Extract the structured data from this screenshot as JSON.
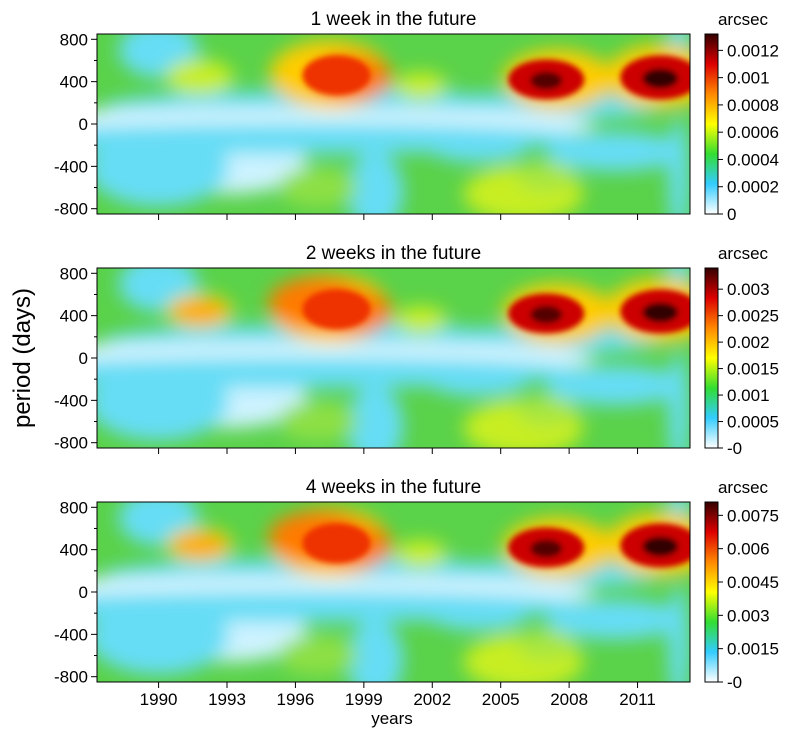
{
  "figure": {
    "ylabel": "period (days)",
    "xlabel": "years"
  },
  "colors": {
    "colormap": [
      "#ffffff",
      "#33ccff",
      "#33dd33",
      "#ffff00",
      "#ff8800",
      "#dd0000",
      "#330000"
    ],
    "background_field": "#5ad24a"
  },
  "chart_data": [
    {
      "type": "heatmap",
      "title": "1 week in the future",
      "colorbar_label": "arcsec",
      "colorbar_ticks": [
        "0",
        "0.0002",
        "0.0004",
        "0.0006",
        "0.0008",
        "0.001",
        "0.0012"
      ],
      "colorbar_values": [
        0,
        0.0002,
        0.0004,
        0.0006,
        0.0008,
        0.001,
        0.0012
      ],
      "colorbar_range": [
        0,
        0.00132
      ],
      "ylim": [
        -850,
        850
      ],
      "yticks": [
        "-800",
        "-400",
        "0",
        "400",
        "800"
      ],
      "yticks_values": [
        -800,
        -400,
        0,
        400,
        800
      ],
      "xlim": [
        1987.3,
        2013.3
      ],
      "show_xticklabels": false
    },
    {
      "type": "heatmap",
      "title": "2 weeks in the future",
      "colorbar_label": "arcsec",
      "colorbar_ticks": [
        "-0",
        "0.0005",
        "0.001",
        "0.0015",
        "0.002",
        "0.0025",
        "0.003"
      ],
      "colorbar_values": [
        0,
        0.0005,
        0.001,
        0.0015,
        0.002,
        0.0025,
        0.003
      ],
      "colorbar_range": [
        0,
        0.0034
      ],
      "ylim": [
        -850,
        850
      ],
      "yticks": [
        "-800",
        "-400",
        "0",
        "400",
        "800"
      ],
      "yticks_values": [
        -800,
        -400,
        0,
        400,
        800
      ],
      "xlim": [
        1987.3,
        2013.3
      ],
      "show_xticklabels": false
    },
    {
      "type": "heatmap",
      "title": "4 weeks in the future",
      "colorbar_label": "arcsec",
      "colorbar_ticks": [
        "-0",
        "0.0015",
        "0.003",
        "0.0045",
        "0.006",
        "0.0075"
      ],
      "colorbar_values": [
        0,
        0.0015,
        0.003,
        0.0045,
        0.006,
        0.0075
      ],
      "colorbar_range": [
        0,
        0.0081
      ],
      "ylim": [
        -850,
        850
      ],
      "yticks": [
        "-800",
        "-400",
        "0",
        "400",
        "800"
      ],
      "yticks_values": [
        -800,
        -400,
        0,
        400,
        800
      ],
      "xlim": [
        1987.3,
        2013.3
      ],
      "xticks": [
        "1990",
        "1993",
        "1996",
        "1999",
        "2002",
        "2005",
        "2008",
        "2011"
      ],
      "xticks_values": [
        1990,
        1993,
        1996,
        1999,
        2002,
        2005,
        2008,
        2011
      ],
      "show_xticklabels": true,
      "xlabel": "years"
    }
  ]
}
